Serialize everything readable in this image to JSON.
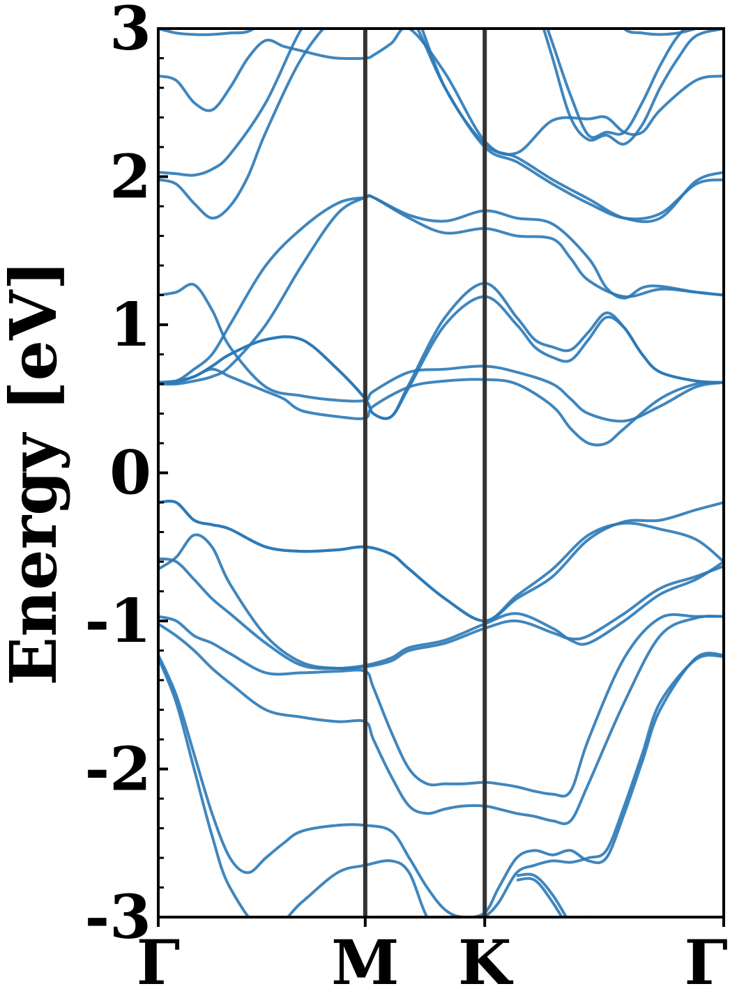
{
  "chart_data": {
    "type": "line",
    "title": "",
    "xlabel": "",
    "ylabel": "Energy [eV]",
    "ylim": [
      -3,
      3
    ],
    "y_ticks": [
      -3,
      -2,
      -1,
      0,
      1,
      2,
      3
    ],
    "y_tick_labels": [
      "-3",
      "-2",
      "-1",
      "0",
      "1",
      "2",
      "3"
    ],
    "x_path": "Γ-M-K-Γ",
    "x_ticks": [
      {
        "label": "Γ",
        "x": 0.0
      },
      {
        "label": "M",
        "x": 0.5774
      },
      {
        "label": "K",
        "x": 0.9107
      },
      {
        "label": "Γ",
        "x": 1.5774
      }
    ],
    "xlim": [
      0,
      1.5774
    ],
    "grid": false,
    "legend": "none",
    "line_color": "#2b79b6",
    "vline_color": "#333333",
    "series": [
      {
        "x": [
          0.0,
          0.05,
          0.1,
          0.15,
          0.2,
          0.3,
          0.4,
          0.5,
          0.5774,
          0.7,
          0.8,
          0.9107,
          1.0,
          1.1,
          1.2,
          1.3,
          1.4,
          1.5,
          1.5774
        ],
        "y": [
          -3.3,
          -3.3,
          -3.3,
          -3.3,
          -3.0,
          -3.3,
          -3.5,
          -3.5,
          -3.5,
          -3.4,
          -3.2,
          -3.2,
          -3.3,
          -3.2,
          -3.0,
          -3.3,
          -3.4,
          -3.4,
          -3.4
        ]
      },
      {
        "x": [
          0.0,
          0.05,
          0.1,
          0.15,
          0.2,
          0.25,
          0.3,
          0.35,
          0.4,
          0.5,
          0.5774,
          0.65,
          0.7,
          0.75,
          0.8,
          0.85,
          0.9107,
          0.95,
          1.0,
          1.05,
          1.1,
          1.15,
          1.2,
          1.25,
          1.3,
          1.35,
          1.4,
          1.5,
          1.5774
        ],
        "y": [
          -1.23,
          -1.5,
          -1.9,
          -2.3,
          -2.6,
          -2.7,
          -2.6,
          -2.5,
          -2.42,
          -2.38,
          -2.38,
          -2.42,
          -2.6,
          -2.8,
          -2.95,
          -3.0,
          -2.97,
          -2.8,
          -2.6,
          -2.55,
          -2.58,
          -2.55,
          -2.62,
          -2.6,
          -2.3,
          -1.95,
          -1.6,
          -1.25,
          -1.23
        ]
      },
      {
        "x": [
          0.0,
          0.05,
          0.1,
          0.15,
          0.2,
          0.3,
          0.4,
          0.5,
          0.5774,
          0.65,
          0.7,
          0.75,
          0.8,
          0.85,
          0.9107,
          0.95,
          1.0,
          1.05,
          1.1,
          1.15,
          1.2,
          1.25,
          1.3,
          1.35,
          1.4,
          1.5,
          1.5774
        ],
        "y": [
          -1.25,
          -1.55,
          -2.0,
          -2.45,
          -2.8,
          -3.1,
          -2.9,
          -2.7,
          -2.65,
          -2.62,
          -2.7,
          -3.0,
          -3.1,
          -3.1,
          -3.0,
          -2.9,
          -2.7,
          -2.65,
          -2.62,
          -2.63,
          -2.6,
          -2.55,
          -2.25,
          -1.9,
          -1.55,
          -1.26,
          -1.24
        ]
      },
      {
        "x": [
          0.0,
          0.05,
          0.1,
          0.15,
          0.2,
          0.3,
          0.4,
          0.5,
          0.5774,
          0.6,
          0.65,
          0.7,
          0.75,
          0.8,
          0.85,
          0.9107,
          0.95,
          1.0,
          1.05,
          1.1,
          1.15,
          1.2,
          1.3,
          1.4,
          1.5,
          1.5774
        ],
        "y": [
          -1.02,
          -1.1,
          -1.2,
          -1.32,
          -1.42,
          -1.6,
          -1.65,
          -1.68,
          -1.68,
          -1.8,
          -2.05,
          -2.25,
          -2.3,
          -2.27,
          -2.25,
          -2.25,
          -2.27,
          -2.3,
          -2.32,
          -2.35,
          -2.35,
          -2.1,
          -1.55,
          -1.1,
          -0.98,
          -0.97
        ]
      },
      {
        "x": [
          0.0,
          0.05,
          0.1,
          0.15,
          0.2,
          0.3,
          0.4,
          0.5,
          0.5774,
          0.6,
          0.65,
          0.7,
          0.75,
          0.8,
          0.85,
          0.9107,
          0.95,
          1.0,
          1.05,
          1.1,
          1.15,
          1.2,
          1.3,
          1.4,
          1.5,
          1.5774
        ],
        "y": [
          -0.97,
          -1.0,
          -1.1,
          -1.15,
          -1.22,
          -1.35,
          -1.35,
          -1.34,
          -1.34,
          -1.45,
          -1.75,
          -2.0,
          -2.1,
          -2.1,
          -2.1,
          -2.09,
          -2.1,
          -2.12,
          -2.15,
          -2.17,
          -2.15,
          -1.8,
          -1.25,
          -0.98,
          -0.97,
          -0.97
        ]
      },
      {
        "x": [
          0.0,
          0.05,
          0.1,
          0.15,
          0.2,
          0.3,
          0.4,
          0.5,
          0.5774,
          0.65,
          0.7,
          0.8,
          0.9107,
          1.0,
          1.1,
          1.15,
          1.2,
          1.3,
          1.4,
          1.5,
          1.5774
        ],
        "y": [
          -0.65,
          -0.57,
          -0.42,
          -0.5,
          -0.75,
          -1.1,
          -1.28,
          -1.32,
          -1.31,
          -1.27,
          -1.2,
          -1.15,
          -1.05,
          -1.0,
          -1.08,
          -1.12,
          -1.1,
          -0.95,
          -0.78,
          -0.7,
          -0.63
        ]
      },
      {
        "x": [
          0.0,
          0.05,
          0.1,
          0.15,
          0.2,
          0.3,
          0.4,
          0.5,
          0.5774,
          0.65,
          0.7,
          0.8,
          0.9107,
          1.0,
          1.1,
          1.15,
          1.2,
          1.3,
          1.4,
          1.5,
          1.5774
        ],
        "y": [
          -0.58,
          -0.6,
          -0.72,
          -0.85,
          -0.95,
          -1.15,
          -1.3,
          -1.32,
          -1.3,
          -1.25,
          -1.18,
          -1.13,
          -1.02,
          -0.95,
          -1.05,
          -1.13,
          -1.15,
          -1.0,
          -0.82,
          -0.72,
          -0.6
        ]
      },
      {
        "x": [
          0.0,
          0.05,
          0.1,
          0.15,
          0.2,
          0.3,
          0.4,
          0.5,
          0.5774,
          0.65,
          0.7,
          0.8,
          0.9107,
          1.0,
          1.1,
          1.2,
          1.3,
          1.4,
          1.5,
          1.5774
        ],
        "y": [
          -0.2,
          -0.2,
          -0.32,
          -0.35,
          -0.38,
          -0.5,
          -0.53,
          -0.52,
          -0.5,
          -0.55,
          -0.65,
          -0.85,
          -1.0,
          -0.85,
          -0.7,
          -0.45,
          -0.33,
          -0.32,
          -0.25,
          -0.2
        ]
      },
      {
        "x": [
          0.0,
          0.05,
          0.1,
          0.15,
          0.2,
          0.3,
          0.4,
          0.5,
          0.5774,
          0.65,
          0.7,
          0.8,
          0.9107,
          1.0,
          1.1,
          1.2,
          1.3,
          1.4,
          1.5,
          1.5774
        ],
        "y": [
          -0.2,
          -0.2,
          -0.32,
          -0.35,
          -0.38,
          -0.5,
          -0.53,
          -0.52,
          -0.5,
          -0.55,
          -0.65,
          -0.85,
          -1.0,
          -0.83,
          -0.65,
          -0.42,
          -0.34,
          -0.38,
          -0.45,
          -0.6
        ]
      },
      {
        "x": [
          0.0,
          0.05,
          0.1,
          0.15,
          0.2,
          0.25,
          0.3,
          0.35,
          0.4,
          0.5,
          0.5774,
          0.6,
          0.7,
          0.8,
          0.9107,
          1.0,
          1.1,
          1.15,
          1.2,
          1.25,
          1.3,
          1.4,
          1.5,
          1.5774
        ],
        "y": [
          0.61,
          0.61,
          0.65,
          0.7,
          0.65,
          0.6,
          0.55,
          0.5,
          0.42,
          0.38,
          0.37,
          0.45,
          0.58,
          0.62,
          0.63,
          0.6,
          0.45,
          0.3,
          0.2,
          0.2,
          0.3,
          0.5,
          0.6,
          0.61
        ]
      },
      {
        "x": [
          0.0,
          0.05,
          0.1,
          0.15,
          0.2,
          0.3,
          0.4,
          0.5,
          0.5774,
          0.6,
          0.7,
          0.8,
          0.9107,
          1.0,
          1.1,
          1.15,
          1.2,
          1.3,
          1.4,
          1.5,
          1.5774
        ],
        "y": [
          0.61,
          0.62,
          0.7,
          0.8,
          1.0,
          1.4,
          1.65,
          1.82,
          1.86,
          1.86,
          1.72,
          1.62,
          1.65,
          1.6,
          1.58,
          1.45,
          1.3,
          1.19,
          1.24,
          1.22,
          1.2
        ]
      },
      {
        "x": [
          0.0,
          0.05,
          0.1,
          0.15,
          0.2,
          0.3,
          0.4,
          0.5,
          0.5774,
          0.6,
          0.7,
          0.8,
          0.9107,
          1.0,
          1.1,
          1.15,
          1.2,
          1.3,
          1.4,
          1.5,
          1.5774
        ],
        "y": [
          1.2,
          1.22,
          1.27,
          1.1,
          0.85,
          0.58,
          0.52,
          0.49,
          0.49,
          0.55,
          0.68,
          0.7,
          0.72,
          0.68,
          0.6,
          0.5,
          0.4,
          0.35,
          0.45,
          0.58,
          0.61
        ]
      },
      {
        "x": [
          0.0,
          0.05,
          0.1,
          0.15,
          0.2,
          0.3,
          0.4,
          0.5,
          0.5774,
          0.6,
          0.7,
          0.8,
          0.9107,
          1.0,
          1.1,
          1.2,
          1.25,
          1.3,
          1.35,
          1.4,
          1.5,
          1.5774
        ],
        "y": [
          0.6,
          0.6,
          0.62,
          0.65,
          0.72,
          1.0,
          1.4,
          1.75,
          1.86,
          1.86,
          1.74,
          1.7,
          1.77,
          1.72,
          1.68,
          1.45,
          1.25,
          1.18,
          1.25,
          1.26,
          1.22,
          1.2
        ]
      },
      {
        "x": [
          0.0,
          0.05,
          0.1,
          0.15,
          0.2,
          0.3,
          0.4,
          0.5,
          0.5774,
          0.6,
          0.65,
          0.7,
          0.8,
          0.9107,
          1.0,
          1.05,
          1.1,
          1.15,
          1.2,
          1.25,
          1.3,
          1.35,
          1.4,
          1.5,
          1.5774
        ],
        "y": [
          0.61,
          0.62,
          0.65,
          0.72,
          0.8,
          0.9,
          0.9,
          0.7,
          0.5,
          0.4,
          0.38,
          0.6,
          1.05,
          1.28,
          1.05,
          0.9,
          0.85,
          0.83,
          0.95,
          1.08,
          0.98,
          0.8,
          0.68,
          0.62,
          0.61
        ]
      },
      {
        "x": [
          0.0,
          0.05,
          0.1,
          0.15,
          0.2,
          0.3,
          0.4,
          0.5,
          0.5774,
          0.6,
          0.65,
          0.7,
          0.8,
          0.9107,
          1.0,
          1.05,
          1.1,
          1.15,
          1.2,
          1.25,
          1.3,
          1.35,
          1.4,
          1.5,
          1.5774
        ],
        "y": [
          0.61,
          0.62,
          0.65,
          0.72,
          0.8,
          0.9,
          0.9,
          0.7,
          0.5,
          0.4,
          0.38,
          0.58,
          1.0,
          1.19,
          1.0,
          0.85,
          0.78,
          0.76,
          0.9,
          1.05,
          0.98,
          0.8,
          0.68,
          0.62,
          0.61
        ]
      },
      {
        "x": [
          0.0,
          0.05,
          0.1,
          0.15,
          0.2,
          0.25,
          0.3,
          0.4,
          0.5,
          0.5774,
          0.6,
          0.7,
          0.8,
          0.9107,
          1.0,
          1.1,
          1.2,
          1.3,
          1.4,
          1.5,
          1.5774
        ],
        "y": [
          1.98,
          1.95,
          1.82,
          1.72,
          1.8,
          2.0,
          2.3,
          2.8,
          3.1,
          3.2,
          3.3,
          3.1,
          2.6,
          2.2,
          2.1,
          1.95,
          1.82,
          1.72,
          1.75,
          1.95,
          1.98
        ]
      },
      {
        "x": [
          0.0,
          0.05,
          0.1,
          0.15,
          0.2,
          0.3,
          0.4,
          0.5,
          0.5774,
          0.6,
          0.7,
          0.8,
          0.9107,
          1.0,
          1.1,
          1.2,
          1.3,
          1.4,
          1.5,
          1.5774
        ],
        "y": [
          2.03,
          2.02,
          2.01,
          2.05,
          2.15,
          2.5,
          3.0,
          3.3,
          3.4,
          3.45,
          3.2,
          2.6,
          2.22,
          2.13,
          1.98,
          1.85,
          1.72,
          1.72,
          1.97,
          2.03
        ]
      },
      {
        "x": [
          0.0,
          0.05,
          0.1,
          0.15,
          0.2,
          0.25,
          0.3,
          0.35,
          0.4,
          0.45,
          0.5,
          0.5774,
          0.6,
          0.65,
          0.7,
          0.8,
          0.9107,
          1.0,
          1.1,
          1.2,
          1.25,
          1.3,
          1.35,
          1.4,
          1.5,
          1.5774
        ],
        "y": [
          2.68,
          2.65,
          2.5,
          2.45,
          2.6,
          2.8,
          2.92,
          2.88,
          2.85,
          2.82,
          2.8,
          2.8,
          2.82,
          2.9,
          3.0,
          2.7,
          2.24,
          2.16,
          2.38,
          2.39,
          2.4,
          2.3,
          2.3,
          2.45,
          2.65,
          2.68
        ]
      },
      {
        "x": [
          0.0,
          0.05,
          0.1,
          0.15,
          0.2,
          0.25,
          0.3,
          0.35,
          0.4,
          0.45,
          0.5,
          0.5774
        ],
        "y": [
          3.0,
          2.97,
          2.96,
          2.96,
          2.97,
          2.98,
          3.05,
          3.1,
          3.2,
          3.25,
          3.3,
          3.35
        ]
      },
      {
        "x": [
          1.05,
          1.1,
          1.15,
          1.2,
          1.25,
          1.3,
          1.35,
          1.4,
          1.45,
          1.5,
          1.5774
        ],
        "y": [
          3.2,
          2.8,
          2.4,
          2.25,
          2.28,
          2.22,
          2.35,
          2.6,
          2.8,
          2.95,
          3.0
        ]
      },
      {
        "x": [
          1.05,
          1.1,
          1.15,
          1.2,
          1.25,
          1.3,
          1.35,
          1.4,
          1.45,
          1.5,
          1.5774
        ],
        "y": [
          3.25,
          2.9,
          2.55,
          2.28,
          2.3,
          2.3,
          2.5,
          2.75,
          2.95,
          3.05,
          3.1
        ]
      },
      {
        "x": [
          1.2,
          1.25,
          1.3,
          1.35,
          1.4,
          1.45,
          1.5,
          1.5774
        ],
        "y": [
          3.4,
          3.2,
          3.0,
          2.97,
          2.96,
          2.97,
          3.0,
          3.05
        ]
      },
      {
        "x": [
          1.0,
          1.05,
          1.1,
          1.15,
          1.2,
          1.3,
          1.4,
          1.5,
          1.5774
        ],
        "y": [
          -2.75,
          -2.75,
          -2.9,
          -3.1,
          -3.3,
          -3.4,
          -3.4,
          -3.3,
          -3.3
        ]
      },
      {
        "x": [
          1.0,
          1.05,
          1.1,
          1.15,
          1.2,
          1.3,
          1.4,
          1.5,
          1.5774
        ],
        "y": [
          -2.72,
          -2.72,
          -2.85,
          -3.05,
          -3.25,
          -3.35,
          -3.35,
          -3.3,
          -3.3
        ]
      }
    ]
  }
}
